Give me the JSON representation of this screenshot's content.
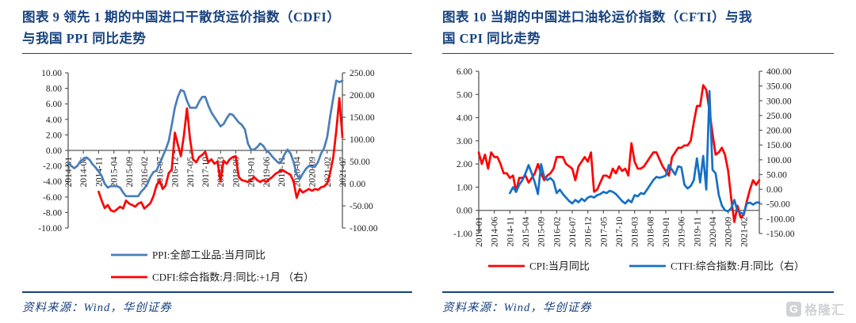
{
  "colors": {
    "navy": "#17427F",
    "red": "#FE0000",
    "blue_left_chart": "#4A7EBB",
    "blue_right_chart": "#1570C6",
    "axis": "#595959",
    "tick_text": "#1a1a1a",
    "logo_gray": "#c9cbd0"
  },
  "logo": {
    "icon": "G",
    "text": "格隆汇"
  },
  "charts": [
    {
      "title_line1": "图表 9  领先 1 期的中国进口干散货运价指数（CDFI）",
      "title_line2": "与我国 PPI 同比走势",
      "source": "资料来源：Wind，华创证券",
      "chart_data": {
        "type": "line",
        "x_start": "2014-01",
        "x_step_months": 1,
        "x_tick_labels": [
          "2014-01",
          "2014-06",
          "2014-11",
          "2015-04",
          "2015-09",
          "2016-02",
          "2016-07",
          "2016-12",
          "2017-05",
          "2017-10",
          "2018-03",
          "2018-08",
          "2019-01",
          "2019-06",
          "2019-11",
          "2020-04",
          "2020-09",
          "2021-02",
          "2021-07"
        ],
        "x_tick_indices": [
          0,
          5,
          10,
          15,
          20,
          25,
          30,
          35,
          40,
          45,
          50,
          55,
          60,
          65,
          70,
          75,
          80,
          85,
          90
        ],
        "left_axis": {
          "min": -10,
          "max": 10,
          "ticks": [
            "10.00",
            "8.00",
            "6.00",
            "4.00",
            "2.00",
            "0.00",
            "-2.00",
            "-4.00",
            "-6.00",
            "-8.00",
            "-10.00"
          ]
        },
        "right_axis": {
          "min": -100,
          "max": 250,
          "ticks": [
            "250.00",
            "200.00",
            "150.00",
            "100.00",
            "50.00",
            "0.00",
            "-50.00",
            "-100.00"
          ]
        },
        "series": [
          {
            "name": "PPI:全部工业品:当月同比",
            "axis": "left",
            "color": "#4A7EBB",
            "values": [
              -1.6,
              -2.0,
              -2.3,
              -2.0,
              -1.4,
              -1.1,
              -0.9,
              -1.2,
              -1.8,
              -2.2,
              -2.7,
              -3.3,
              -4.3,
              -4.8,
              -4.6,
              -4.6,
              -4.6,
              -4.8,
              -5.4,
              -5.9,
              -5.9,
              -5.9,
              -5.9,
              -5.9,
              -5.3,
              -4.9,
              -4.3,
              -3.4,
              -2.8,
              -2.6,
              -1.7,
              -0.8,
              0.1,
              1.2,
              3.3,
              5.5,
              6.9,
              7.8,
              7.6,
              6.4,
              5.5,
              5.5,
              5.5,
              6.3,
              6.9,
              6.9,
              5.8,
              4.9,
              4.3,
              3.7,
              3.1,
              3.4,
              4.1,
              4.7,
              4.6,
              4.1,
              3.6,
              3.3,
              2.7,
              0.9,
              0.1,
              0.1,
              0.4,
              0.9,
              0.6,
              0.0,
              -0.3,
              -0.8,
              -1.2,
              -1.6,
              -1.4,
              -0.5,
              0.1,
              -0.4,
              -1.5,
              -3.1,
              -3.7,
              -3.0,
              -2.4,
              -2.0,
              -2.1,
              -2.1,
              -1.5,
              -0.4,
              0.3,
              1.7,
              4.4,
              6.8,
              9.0,
              8.8,
              9.0
            ]
          },
          {
            "name": "CDFI:综合指数:月:同比:+1月 （右）",
            "axis": "right",
            "color": "#FE0000",
            "values": [
              null,
              null,
              null,
              null,
              null,
              null,
              null,
              null,
              null,
              null,
              -18,
              -38,
              -55,
              -48,
              -60,
              -63,
              -58,
              -52,
              -56,
              -38,
              -45,
              -48,
              -52,
              -45,
              -42,
              -56,
              -50,
              -44,
              -28,
              -4,
              8,
              -12,
              -4,
              24,
              32,
              115,
              88,
              62,
              110,
              170,
              100,
              55,
              48,
              60,
              65,
              72,
              48,
              55,
              45,
              50,
              5,
              52,
              45,
              55,
              60,
              62,
              15,
              8,
              6,
              4,
              8,
              15,
              8,
              4,
              8,
              4,
              10,
              15,
              22,
              26,
              30,
              28,
              24,
              20,
              4,
              -32,
              -12,
              -20,
              -16,
              -12,
              -16,
              -12,
              -14,
              -8,
              -6,
              0,
              25,
              60,
              120,
              193,
              105
            ]
          }
        ]
      }
    },
    {
      "title_line1": "图表 10   当期的中国进口油轮运价指数（CFTI）与我",
      "title_line2": "国 CPI 同比走势",
      "source": "资料来源：Wind，华创证券",
      "chart_data": {
        "type": "line",
        "x_start": "2014-01",
        "x_step_months": 1,
        "x_tick_labels": [
          "2014-01",
          "2014-06",
          "2014-11",
          "2015-04",
          "2015-09",
          "2016-02",
          "2016-07",
          "2016-12",
          "2017-05",
          "2017-10",
          "2018-03",
          "2018-08",
          "2019-01",
          "2019-06",
          "2019-11",
          "2020-04",
          "2020-09",
          "2021-02"
        ],
        "x_tick_indices": [
          0,
          5,
          10,
          15,
          20,
          25,
          30,
          35,
          40,
          45,
          50,
          55,
          60,
          65,
          70,
          75,
          80,
          85
        ],
        "left_axis": {
          "min": -1,
          "max": 6,
          "ticks": [
            "6.00",
            "5.00",
            "4.00",
            "3.00",
            "2.00",
            "1.00",
            "0.00",
            "-1.00"
          ]
        },
        "right_axis": {
          "min": -150,
          "max": 400,
          "ticks": [
            "400.00",
            "350.00",
            "300.00",
            "250.00",
            "200.00",
            "150.00",
            "100.00",
            "50.00",
            "0.00",
            "-50.00",
            "-100.00",
            "-150.00"
          ]
        },
        "series": [
          {
            "name": "CPI:当月同比",
            "axis": "left",
            "color": "#FE0000",
            "values": [
              2.5,
              2.0,
              2.4,
              1.8,
              2.5,
              2.3,
              2.3,
              2.0,
              1.6,
              1.6,
              1.4,
              1.5,
              0.8,
              1.4,
              1.4,
              1.5,
              1.2,
              1.4,
              1.6,
              2.0,
              1.6,
              1.3,
              1.5,
              1.6,
              1.8,
              2.3,
              2.3,
              2.3,
              2.0,
              1.9,
              1.8,
              1.3,
              1.9,
              2.1,
              2.3,
              2.1,
              2.5,
              0.8,
              0.9,
              1.2,
              1.5,
              1.5,
              1.4,
              1.8,
              1.6,
              1.9,
              1.7,
              1.8,
              1.5,
              2.9,
              2.1,
              1.8,
              1.8,
              1.9,
              2.1,
              2.3,
              2.5,
              2.5,
              2.2,
              1.9,
              1.7,
              1.5,
              2.3,
              2.5,
              2.7,
              2.7,
              2.8,
              2.8,
              3.0,
              3.8,
              4.5,
              4.5,
              5.4,
              5.2,
              4.3,
              3.3,
              2.4,
              2.5,
              2.7,
              2.4,
              1.7,
              0.5,
              -0.5,
              0.2,
              -0.3,
              -0.2,
              0.4,
              0.9,
              1.3,
              1.1,
              1.3
            ]
          },
          {
            "name": "CTFI:综合指数:月:同比（右）",
            "axis": "right",
            "color": "#1570C6",
            "values": [
              null,
              null,
              null,
              null,
              null,
              null,
              null,
              null,
              null,
              null,
              -13,
              7,
              -9,
              15,
              31,
              54,
              82,
              54,
              23,
              -16,
              85,
              42,
              31,
              38,
              27,
              -13,
              -1,
              -16,
              -28,
              -40,
              -48,
              -36,
              -44,
              -32,
              -40,
              -28,
              -24,
              -28,
              -20,
              -16,
              -9,
              -13,
              -5,
              -9,
              -16,
              -28,
              -40,
              -48,
              -36,
              -44,
              -20,
              -24,
              -13,
              -16,
              -1,
              15,
              31,
              42,
              39,
              42,
              46,
              82,
              66,
              50,
              78,
              74,
              15,
              3,
              11,
              31,
              105,
              23,
              113,
              -1,
              333,
              66,
              54,
              -20,
              -55,
              -71,
              -75,
              -64,
              -36,
              -75,
              -79,
              -85,
              -48,
              -45,
              -52,
              -45,
              -45
            ]
          }
        ]
      }
    }
  ]
}
